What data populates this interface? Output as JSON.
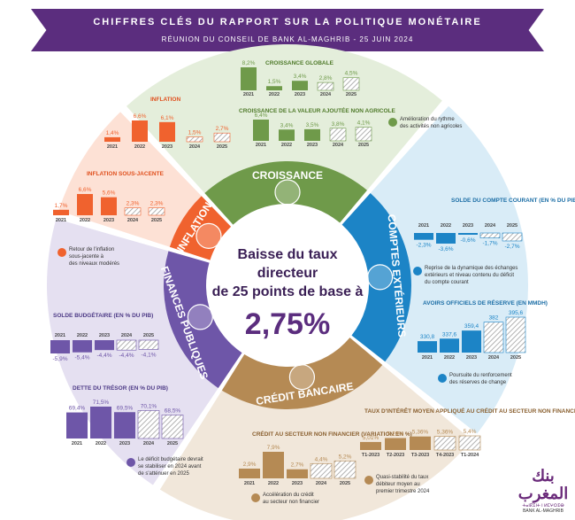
{
  "header": {
    "title": "CHIFFRES CLÉS DU RAPPORT SUR LA POLITIQUE MONÉTAIRE",
    "subtitle": "RÉUNION DU CONSEIL DE BANK AL-MAGHRIB - 25 JUIN 2024"
  },
  "center": {
    "line1": "Baisse du taux",
    "line2": "directeur",
    "line3": "de 25 points de base à",
    "rate": "2,75%"
  },
  "sections": {
    "croissance": "CROISSANCE",
    "inflation": "INFLATION",
    "comptes": "COMPTES EXTÉRIEURS",
    "finances": "FINANCES PUBLIQUES",
    "credit": "CRÉDIT BANCAIRE"
  },
  "colors": {
    "croissance": "#6f9a4a",
    "inflation": "#f0622e",
    "comptes": "#1c84c6",
    "finances": "#6e56a8",
    "credit": "#b58a54",
    "banner": "#5b2d7e"
  },
  "chart_data": [
    {
      "id": "croissance_globale",
      "type": "bar",
      "title": "CROISSANCE GLOBALE",
      "categories": [
        "2021",
        "2022",
        "2023",
        "2024",
        "2025"
      ],
      "values": [
        8.2,
        1.5,
        3.4,
        2.8,
        4.5
      ],
      "labels": [
        "8,2%",
        "1,5%",
        "3,4%",
        "2,8%",
        "4,5%"
      ]
    },
    {
      "id": "croissance_vana",
      "type": "bar",
      "title": "CROISSANCE DE LA VALEUR AJOUTÉE NON AGRICOLE",
      "categories": [
        "2021",
        "2022",
        "2023",
        "2024",
        "2025"
      ],
      "values": [
        6.4,
        3.4,
        3.5,
        3.8,
        4.1
      ],
      "labels": [
        "6,4%",
        "3,4%",
        "3,5%",
        "3,8%",
        "4,1%"
      ]
    },
    {
      "id": "inflation",
      "type": "bar",
      "title": "INFLATION",
      "categories": [
        "2021",
        "2022",
        "2023",
        "2024",
        "2025"
      ],
      "values": [
        1.4,
        6.6,
        6.1,
        1.5,
        2.7
      ],
      "labels": [
        "1,4%",
        "6,6%",
        "6,1%",
        "1,5%",
        "2,7%"
      ]
    },
    {
      "id": "inflation_sj",
      "type": "bar",
      "title": "INFLATION SOUS-JACENTE",
      "categories": [
        "2021",
        "2022",
        "2023",
        "2024",
        "2025"
      ],
      "values": [
        1.7,
        6.6,
        5.6,
        2.3,
        2.3
      ],
      "labels": [
        "1,7%",
        "6,6%",
        "5,6%",
        "2,3%",
        "2,3%"
      ]
    },
    {
      "id": "solde_courant",
      "type": "bar",
      "title": "SOLDE DU COMPTE COURANT (EN % DU PIB)",
      "categories": [
        "2021",
        "2022",
        "2023",
        "2024",
        "2025"
      ],
      "values": [
        -2.3,
        -3.6,
        -0.6,
        -1.7,
        -2.7
      ],
      "labels": [
        "-2,3%",
        "-3,6%",
        "-0,6%",
        "-1,7%",
        "-2,7%"
      ]
    },
    {
      "id": "avoirs",
      "type": "bar",
      "title": "AVOIRS OFFICIELS DE RÉSERVE (EN MMDH)",
      "categories": [
        "2021",
        "2022",
        "2023",
        "2024",
        "2025"
      ],
      "values": [
        330.8,
        337.6,
        359.4,
        382,
        395.6
      ],
      "labels": [
        "330,8",
        "337,6",
        "359,4",
        "382",
        "395,6"
      ]
    },
    {
      "id": "solde_budgetaire",
      "type": "bar",
      "title": "SOLDE BUDGÉTAIRE (EN % DU PIB)",
      "categories": [
        "2021",
        "2022",
        "2023",
        "2024",
        "2025"
      ],
      "values": [
        -5.9,
        -5.4,
        -4.4,
        -4.4,
        -4.1
      ],
      "labels": [
        "-5,9%",
        "-5,4%",
        "-4,4%",
        "-4,4%",
        "-4,1%"
      ]
    },
    {
      "id": "dette",
      "type": "bar",
      "title": "DETTE DU TRÉSOR (EN % DU PIB)",
      "categories": [
        "2021",
        "2022",
        "2023",
        "2024",
        "2025"
      ],
      "values": [
        69.4,
        71.5,
        69.5,
        70.1,
        68.5
      ],
      "labels": [
        "69,4%",
        "71,5%",
        "69,5%",
        "70,1%",
        "68,5%"
      ]
    },
    {
      "id": "credit_snf",
      "type": "bar",
      "title": "CRÉDIT AU SECTEUR NON FINANCIER (VARIATION EN %)",
      "categories": [
        "2021",
        "2022",
        "2023",
        "2024",
        "2025"
      ],
      "values": [
        2.9,
        7.9,
        2.7,
        4.4,
        5.2
      ],
      "labels": [
        "2,9%",
        "7,9%",
        "2,7%",
        "4,4%",
        "5,2%"
      ]
    },
    {
      "id": "taux_moyen",
      "type": "bar",
      "title": "TAUX D'INTÉRÊT MOYEN APPLIQUÉ AU CRÉDIT AU SECTEUR NON FINANCIER",
      "categories": [
        "T1-2023",
        "T2-2023",
        "T3-2023",
        "T4-2023",
        "T1-2024"
      ],
      "values": [
        5.01,
        5.26,
        5.36,
        5.36,
        5.4
      ],
      "labels": [
        "5,01%",
        "5,26%",
        "5,36%",
        "5,36%",
        "5,4%"
      ]
    }
  ],
  "notes": {
    "croissance": [
      "Amélioration du rythme",
      "des activités non agricoles"
    ],
    "inflation": [
      "Retour de l'inflation",
      "sous-jacente à",
      "des niveaux modérés"
    ],
    "comptes1": [
      "Reprise de la dynamique des échanges",
      "extérieurs et niveau contenu du déficit",
      "du compte courant"
    ],
    "comptes2": [
      "Poursuite du renforcement",
      "des réserves de change"
    ],
    "finances": [
      "Le déficit budgétaire devrait",
      "se stabiliser en 2024 avant",
      "de s'atténuer en 2025"
    ],
    "credit1": [
      "Accélération du crédit",
      "au secteur non financier"
    ],
    "credit2": [
      "Quasi-stabilité du taux",
      "débiteur moyen au",
      "premier trimestre 2024"
    ]
  },
  "logo": {
    "arabic": "بنك المغرب",
    "latin1": "ⵜⴰⵏⴽⵉⵏⵜ ⵏ ⵍⵎⵖⵔⵉⴱ",
    "latin2": "BANK AL-MAGHRIB"
  }
}
